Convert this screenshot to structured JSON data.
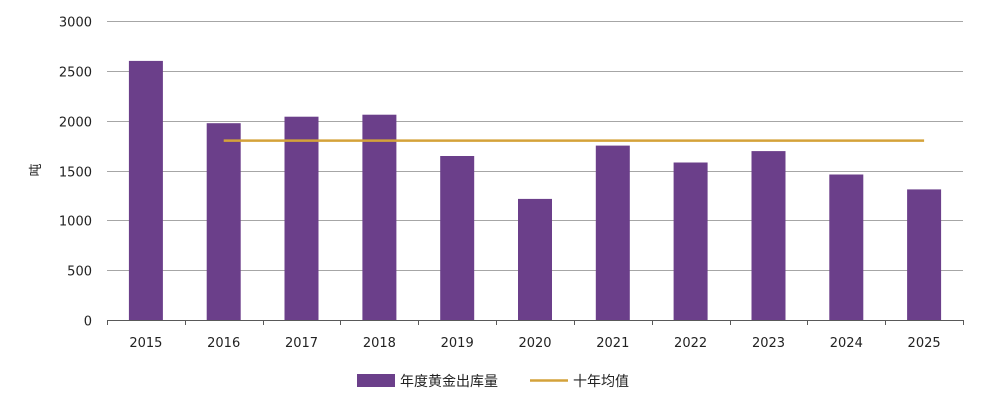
{
  "chart_data": {
    "type": "bar",
    "categories": [
      "2015",
      "2016",
      "2017",
      "2018",
      "2019",
      "2020",
      "2021",
      "2022",
      "2023",
      "2024",
      "2025"
    ],
    "series": [
      {
        "name": "年度黄金出库量",
        "type": "bar",
        "values": [
          2600,
          1975,
          2040,
          2060,
          1645,
          1215,
          1750,
          1580,
          1695,
          1460,
          1310
        ]
      },
      {
        "name": "十年均值",
        "type": "line",
        "value": 1800,
        "categories_span": [
          "2016",
          "2025"
        ]
      }
    ],
    "title": "",
    "xlabel": "",
    "ylabel": "吨",
    "ylim": [
      0,
      3000
    ],
    "yticks": [
      0,
      500,
      1000,
      1500,
      2000,
      2500,
      3000
    ],
    "grid": true,
    "legend_position": "bottom-center",
    "colors": {
      "bar": "#6b3f8a",
      "line": "#d4a23a",
      "grid": "#a6a6a6",
      "axis": "#595959"
    }
  }
}
